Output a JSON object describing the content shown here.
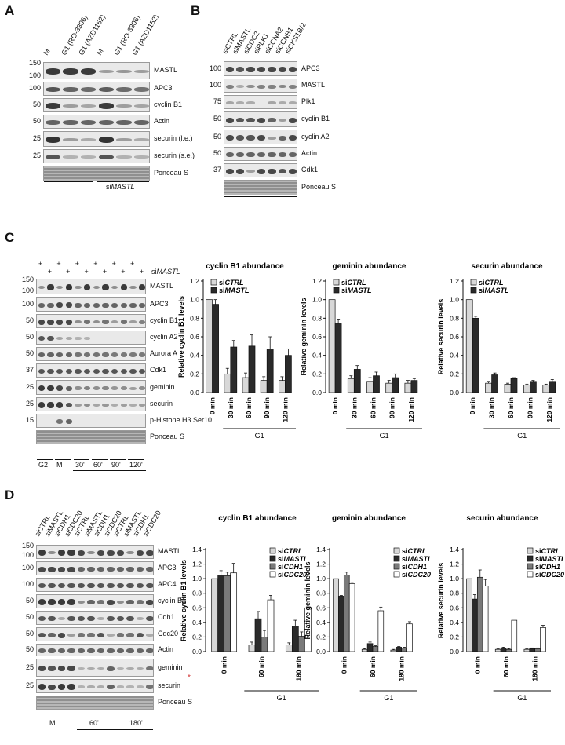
{
  "panels": {
    "A": "A",
    "B": "B",
    "C": "C",
    "D": "D"
  },
  "kda_label": "kDa",
  "A": {
    "lanes": [
      "M",
      "G1 (RO-3306)",
      "G1 (AZD1152)",
      "M",
      "G1 (RO-3306)",
      "G1 (AZD1152)"
    ],
    "rows": [
      {
        "label": "MASTL",
        "kda": [
          "150",
          "100"
        ]
      },
      {
        "label": "APC3",
        "kda": [
          "100"
        ]
      },
      {
        "label": "cyclin B1",
        "kda": [
          "50"
        ]
      },
      {
        "label": "Actin",
        "kda": [
          "50"
        ]
      },
      {
        "label": "securin (l.e.)",
        "kda": [
          "25"
        ]
      },
      {
        "label": "securin (s.e.)",
        "kda": [
          "25"
        ]
      },
      {
        "label": "Ponceau S",
        "kda": []
      }
    ],
    "groups": [
      "siCTRL",
      "si",
      "MASTL"
    ]
  },
  "B": {
    "lanes": [
      "siCTRL",
      "siMASTL",
      "siCDC2",
      "siPLK1",
      "siCCNA2",
      "siCCNB1",
      "siCKS1B/2"
    ],
    "rows": [
      {
        "label": "APC3",
        "kda": [
          "100"
        ]
      },
      {
        "label": "MASTL",
        "kda": [
          "100"
        ]
      },
      {
        "label": "Plk1",
        "kda": [
          "75"
        ]
      },
      {
        "label": "cyclin B1",
        "kda": [
          "50"
        ]
      },
      {
        "label": "cyclin A2",
        "kda": [
          "50"
        ]
      },
      {
        "label": "Actin",
        "kda": [
          "50"
        ]
      },
      {
        "label": "Cdk1",
        "kda": [
          "37"
        ]
      },
      {
        "label": "Ponceau S",
        "kda": []
      }
    ],
    "group": "mitotic"
  },
  "C": {
    "rowhead": {
      "siCTRL": "siCTRL",
      "siMASTL_pre": "si",
      "siMASTL_it": "MASTL",
      "plus": "+"
    },
    "rows": [
      {
        "label": "MASTL",
        "kda": [
          "150",
          "100"
        ]
      },
      {
        "label": "APC3",
        "kda": [
          "100"
        ]
      },
      {
        "label": "cyclin B1",
        "kda": [
          "50"
        ]
      },
      {
        "label": "cyclin A2",
        "kda": [
          "50"
        ]
      },
      {
        "label": "Aurora A",
        "kda": [
          "50"
        ]
      },
      {
        "label": "Cdk1",
        "kda": [
          "37"
        ]
      },
      {
        "label": "geminin",
        "kda": [
          "25"
        ]
      },
      {
        "label": "securin",
        "kda": [
          "25"
        ]
      },
      {
        "label": "p-Histone H3 Ser10",
        "kda": [
          "15"
        ]
      },
      {
        "label": "Ponceau S",
        "kda": []
      }
    ],
    "bottom_labels": [
      "G2",
      "M",
      "30'",
      "60'",
      "90'",
      "120'"
    ],
    "g1": "G1"
  },
  "D": {
    "lanes": [
      "siCTRL",
      "siMASTL",
      "siCDH1",
      "siCDC20",
      "siCTRL",
      "siMASTL",
      "siCDH1",
      "siCDC20",
      "siCTRL",
      "siMASTL",
      "siCDH1",
      "siCDC20"
    ],
    "rows": [
      {
        "label": "MASTL",
        "kda": [
          "150",
          "100"
        ]
      },
      {
        "label": "APC3",
        "kda": [
          "100"
        ]
      },
      {
        "label": "APC4",
        "kda": [
          "100"
        ]
      },
      {
        "label": "cyclin B1",
        "kda": [
          "50"
        ]
      },
      {
        "label": "Cdh1",
        "kda": [
          "50"
        ]
      },
      {
        "label": "Cdc20",
        "kda": [
          "50"
        ]
      },
      {
        "label": "Actin",
        "kda": [
          "50"
        ]
      },
      {
        "label": "geminin",
        "kda": [
          "25"
        ]
      },
      {
        "label": "securin",
        "kda": [
          "25"
        ]
      },
      {
        "label": "Ponceau S",
        "kda": []
      }
    ],
    "bottom_labels": [
      "M",
      "60'",
      "180'"
    ],
    "g1": "G1",
    "asterisk": "*"
  },
  "chart_data": [
    {
      "type": "bar",
      "panel": "C",
      "title": "cyclin B1 abundance",
      "ylabel": "Relative cyclin B1 levels",
      "xlabel": "G1",
      "categories": [
        "0 min",
        "30 min",
        "60 min",
        "90 min",
        "120 min"
      ],
      "ylim": [
        0,
        1.2
      ],
      "yticks": [
        "0.0",
        "0.2",
        "0.4",
        "0.6",
        "0.8",
        "1.0",
        "1.2"
      ],
      "series": [
        {
          "name": "siCTRL",
          "values": [
            1.0,
            0.2,
            0.16,
            0.13,
            0.13
          ],
          "err": [
            0.0,
            0.06,
            0.05,
            0.04,
            0.04
          ]
        },
        {
          "name": "siMASTL",
          "values": [
            0.95,
            0.49,
            0.5,
            0.47,
            0.4
          ],
          "err": [
            0.05,
            0.07,
            0.12,
            0.13,
            0.07
          ]
        }
      ]
    },
    {
      "type": "bar",
      "panel": "C",
      "title": "geminin abundance",
      "ylabel": "Relative geminin levels",
      "xlabel": "G1",
      "categories": [
        "0 min",
        "30 min",
        "60 min",
        "90 min",
        "120 min"
      ],
      "ylim": [
        0,
        1.2
      ],
      "yticks": [
        "0.0",
        "0.2",
        "0.4",
        "0.6",
        "0.8",
        "1.0",
        "1.2"
      ],
      "series": [
        {
          "name": "siCTRL",
          "values": [
            1.0,
            0.15,
            0.12,
            0.1,
            0.1
          ],
          "err": [
            0.0,
            0.03,
            0.04,
            0.03,
            0.03
          ]
        },
        {
          "name": "siMASTL",
          "values": [
            0.74,
            0.25,
            0.18,
            0.16,
            0.13
          ],
          "err": [
            0.05,
            0.04,
            0.04,
            0.04,
            0.02
          ]
        }
      ]
    },
    {
      "type": "bar",
      "panel": "C",
      "title": "securin abundance",
      "ylabel": "Relative securin levels",
      "xlabel": "G1",
      "categories": [
        "0 min",
        "30 min",
        "60 min",
        "90 min",
        "120 min"
      ],
      "ylim": [
        0,
        1.2
      ],
      "yticks": [
        "0.0",
        "0.2",
        "0.4",
        "0.6",
        "0.8",
        "1.0",
        "1.2"
      ],
      "series": [
        {
          "name": "siCTRL",
          "values": [
            1.0,
            0.1,
            0.09,
            0.08,
            0.08
          ],
          "err": [
            0.0,
            0.02,
            0.01,
            0.01,
            0.01
          ]
        },
        {
          "name": "siMASTL",
          "values": [
            0.8,
            0.19,
            0.15,
            0.12,
            0.12
          ],
          "err": [
            0.02,
            0.02,
            0.01,
            0.01,
            0.02
          ]
        }
      ]
    },
    {
      "type": "bar",
      "panel": "D",
      "title": "cyclin B1 abundance",
      "ylabel": "Relative cyclin B1 levels",
      "xlabel": "G1",
      "categories": [
        "0 min",
        "60 min",
        "180 min"
      ],
      "ylim": [
        0,
        1.4
      ],
      "yticks": [
        "0.0",
        "0.2",
        "0.4",
        "0.6",
        "0.8",
        "1.0",
        "1.2",
        "1.4"
      ],
      "series": [
        {
          "name": "siCTRL",
          "values": [
            1.0,
            0.09,
            0.09
          ],
          "err": [
            0.0,
            0.04,
            0.03
          ]
        },
        {
          "name": "siMASTL",
          "values": [
            1.05,
            0.45,
            0.35
          ],
          "err": [
            0.06,
            0.1,
            0.08
          ]
        },
        {
          "name": "siCDH1",
          "values": [
            1.04,
            0.2,
            0.21
          ],
          "err": [
            0.05,
            0.09,
            0.06
          ]
        },
        {
          "name": "siCDC20",
          "values": [
            1.08,
            0.71,
            0.6
          ],
          "err": [
            0.13,
            0.06,
            0.05
          ]
        }
      ]
    },
    {
      "type": "bar",
      "panel": "D",
      "title": "geminin abundance",
      "ylabel": "Relative geminin levels",
      "xlabel": "G1",
      "categories": [
        "0 min",
        "60 min",
        "180 min"
      ],
      "ylim": [
        0,
        1.4
      ],
      "yticks": [
        "0.0",
        "0.2",
        "0.4",
        "0.6",
        "0.8",
        "1.0",
        "1.2",
        "1.4"
      ],
      "series": [
        {
          "name": "siCTRL",
          "values": [
            1.0,
            0.03,
            0.02
          ],
          "err": [
            0.0,
            0.01,
            0.01
          ]
        },
        {
          "name": "siMASTL",
          "values": [
            0.76,
            0.11,
            0.06
          ],
          "err": [
            0.01,
            0.02,
            0.01
          ]
        },
        {
          "name": "siCDH1",
          "values": [
            1.05,
            0.07,
            0.05
          ],
          "err": [
            0.04,
            0.01,
            0.01
          ]
        },
        {
          "name": "siCDC20",
          "values": [
            0.93,
            0.56,
            0.38
          ],
          "err": [
            0.02,
            0.05,
            0.03
          ]
        }
      ]
    },
    {
      "type": "bar",
      "panel": "D",
      "title": "securin abundance",
      "ylabel": "Relative securin levels",
      "xlabel": "G1",
      "categories": [
        "0 min",
        "60 min",
        "180 min"
      ],
      "ylim": [
        0,
        1.4
      ],
      "yticks": [
        "0.0",
        "0.2",
        "0.4",
        "0.6",
        "0.8",
        "1.0",
        "1.2",
        "1.4"
      ],
      "series": [
        {
          "name": "siCTRL",
          "values": [
            1.0,
            0.03,
            0.03
          ],
          "err": [
            0.0,
            0.01,
            0.01
          ]
        },
        {
          "name": "siMASTL",
          "values": [
            0.72,
            0.05,
            0.04
          ],
          "err": [
            0.06,
            0.01,
            0.01
          ]
        },
        {
          "name": "siCDH1",
          "values": [
            1.02,
            0.03,
            0.04
          ],
          "err": [
            0.1,
            0.01,
            0.01
          ]
        },
        {
          "name": "siCDC20",
          "values": [
            0.9,
            0.43,
            0.33
          ],
          "err": [
            0.09,
            0.0,
            0.03
          ]
        }
      ]
    }
  ],
  "colors": {
    "siCTRL": "#d8d8d8",
    "siMASTL": "#2a2a2a",
    "siCDH1": "#7a7a7a",
    "siCDC20": "#ffffff"
  }
}
